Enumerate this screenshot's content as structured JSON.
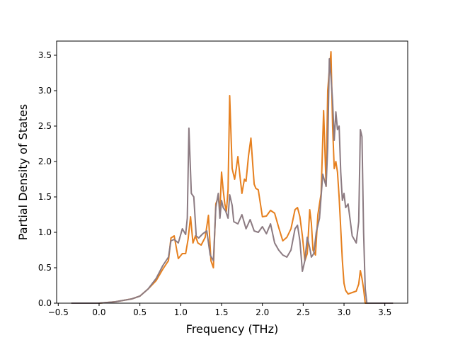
{
  "chart_data": {
    "type": "line",
    "title": "",
    "xlabel": "Frequency (THz)",
    "ylabel": "Partial Density of States",
    "xlim": [
      -0.52,
      3.78
    ],
    "ylim": [
      0.0,
      3.7
    ],
    "xticks": [
      -0.5,
      0.0,
      0.5,
      1.0,
      1.5,
      2.0,
      2.5,
      3.0,
      3.5
    ],
    "xtick_labels": [
      "−0.5",
      "0.0",
      "0.5",
      "1.0",
      "1.5",
      "2.0",
      "2.5",
      "3.0",
      "3.5"
    ],
    "yticks": [
      0.0,
      0.5,
      1.0,
      1.5,
      2.0,
      2.5,
      3.0,
      3.5
    ],
    "ytick_labels": [
      "0.0",
      "0.5",
      "1.0",
      "1.5",
      "2.0",
      "2.5",
      "3.0",
      "3.5"
    ],
    "grid": false,
    "legend": false,
    "series": [
      {
        "color": "#e6801f",
        "x": [
          -0.34,
          0.0,
          0.2,
          0.4,
          0.5,
          0.6,
          0.7,
          0.78,
          0.85,
          0.88,
          0.92,
          0.97,
          1.02,
          1.06,
          1.09,
          1.12,
          1.15,
          1.18,
          1.21,
          1.25,
          1.3,
          1.34,
          1.37,
          1.4,
          1.43,
          1.46,
          1.48,
          1.5,
          1.52,
          1.54,
          1.56,
          1.58,
          1.6,
          1.63,
          1.66,
          1.68,
          1.7,
          1.73,
          1.75,
          1.78,
          1.8,
          1.83,
          1.86,
          1.88,
          1.9,
          1.92,
          1.95,
          2.0,
          2.05,
          2.1,
          2.15,
          2.2,
          2.25,
          2.3,
          2.35,
          2.4,
          2.43,
          2.46,
          2.49,
          2.52,
          2.55,
          2.58,
          2.6,
          2.62,
          2.65,
          2.68,
          2.72,
          2.75,
          2.78,
          2.8,
          2.82,
          2.84,
          2.86,
          2.88,
          2.9,
          2.92,
          2.94,
          2.96,
          2.98,
          3.0,
          3.02,
          3.05,
          3.1,
          3.15,
          3.18,
          3.2,
          3.22,
          3.24,
          3.26,
          3.28,
          3.3,
          3.6
        ],
        "y": [
          0.0,
          0.0,
          0.02,
          0.06,
          0.1,
          0.2,
          0.32,
          0.48,
          0.6,
          0.92,
          0.95,
          0.63,
          0.7,
          0.7,
          0.9,
          1.22,
          0.85,
          0.95,
          0.85,
          0.82,
          0.93,
          1.24,
          0.6,
          0.5,
          1.4,
          1.5,
          1.3,
          1.85,
          1.6,
          1.4,
          1.3,
          1.6,
          2.93,
          1.9,
          1.75,
          1.9,
          2.07,
          1.75,
          1.55,
          1.75,
          1.72,
          2.08,
          2.33,
          2.0,
          1.68,
          1.62,
          1.6,
          1.22,
          1.23,
          1.31,
          1.27,
          1.07,
          0.88,
          0.93,
          1.05,
          1.32,
          1.35,
          1.22,
          0.95,
          0.6,
          0.7,
          1.32,
          1.13,
          0.75,
          0.68,
          1.25,
          1.55,
          2.72,
          1.65,
          3.0,
          3.3,
          3.55,
          2.5,
          1.9,
          2.0,
          1.85,
          1.5,
          1.05,
          0.6,
          0.28,
          0.18,
          0.13,
          0.15,
          0.17,
          0.27,
          0.46,
          0.35,
          0.2,
          0.0,
          0.0,
          0.0,
          0.0
        ]
      },
      {
        "color": "#8c7b82",
        "x": [
          -0.34,
          0.0,
          0.2,
          0.4,
          0.5,
          0.6,
          0.7,
          0.78,
          0.85,
          0.88,
          0.92,
          0.97,
          1.02,
          1.06,
          1.08,
          1.1,
          1.13,
          1.16,
          1.19,
          1.22,
          1.27,
          1.32,
          1.36,
          1.4,
          1.43,
          1.46,
          1.48,
          1.5,
          1.52,
          1.55,
          1.58,
          1.6,
          1.63,
          1.65,
          1.7,
          1.75,
          1.8,
          1.85,
          1.9,
          1.95,
          2.0,
          2.05,
          2.1,
          2.15,
          2.2,
          2.25,
          2.3,
          2.35,
          2.4,
          2.43,
          2.46,
          2.49,
          2.52,
          2.55,
          2.58,
          2.6,
          2.63,
          2.66,
          2.7,
          2.74,
          2.78,
          2.8,
          2.82,
          2.84,
          2.86,
          2.88,
          2.9,
          2.92,
          2.94,
          2.96,
          2.98,
          3.0,
          3.02,
          3.05,
          3.1,
          3.15,
          3.18,
          3.2,
          3.22,
          3.24,
          3.26,
          3.28,
          3.3,
          3.6
        ],
        "y": [
          0.0,
          0.0,
          0.02,
          0.06,
          0.1,
          0.2,
          0.35,
          0.53,
          0.65,
          0.88,
          0.9,
          0.85,
          1.05,
          0.97,
          1.2,
          2.47,
          1.55,
          1.5,
          0.95,
          0.92,
          0.98,
          1.02,
          0.68,
          0.6,
          1.35,
          1.55,
          1.2,
          1.45,
          1.35,
          1.3,
          1.2,
          1.53,
          1.38,
          1.15,
          1.12,
          1.25,
          1.05,
          1.18,
          1.02,
          1.0,
          1.08,
          0.98,
          1.12,
          0.85,
          0.75,
          0.68,
          0.65,
          0.75,
          1.05,
          1.1,
          0.88,
          0.45,
          0.6,
          0.93,
          0.78,
          0.65,
          0.7,
          1.0,
          1.2,
          1.82,
          1.65,
          2.2,
          3.45,
          3.2,
          2.85,
          2.3,
          2.7,
          2.45,
          2.5,
          1.85,
          1.45,
          1.55,
          1.35,
          1.4,
          0.95,
          0.85,
          1.15,
          2.45,
          2.35,
          1.0,
          0.2,
          0.0,
          0.0,
          0.0
        ]
      }
    ]
  }
}
